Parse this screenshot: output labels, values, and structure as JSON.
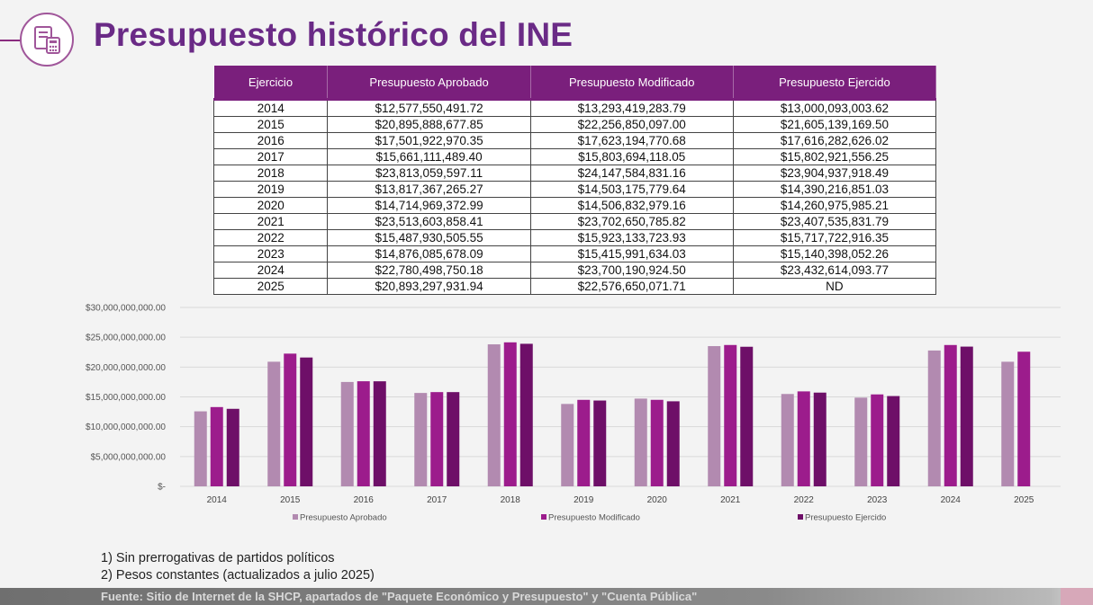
{
  "title": "Presupuesto histórico del INE",
  "colors": {
    "title": "#6a2a86",
    "header_bg": "#7a1f7c",
    "aprobado": "#b28ab0",
    "modificado": "#9c1c8c",
    "ejercido": "#6e0f68"
  },
  "table": {
    "headers": [
      "Ejercicio",
      "Presupuesto Aprobado",
      "Presupuesto Modificado",
      "Presupuesto Ejercido"
    ],
    "rows": [
      [
        "2014",
        "$12,577,550,491.72",
        "$13,293,419,283.79",
        "$13,000,093,003.62"
      ],
      [
        "2015",
        "$20,895,888,677.85",
        "$22,256,850,097.00",
        "$21,605,139,169.50"
      ],
      [
        "2016",
        "$17,501,922,970.35",
        "$17,623,194,770.68",
        "$17,616,282,626.02"
      ],
      [
        "2017",
        "$15,661,111,489.40",
        "$15,803,694,118.05",
        "$15,802,921,556.25"
      ],
      [
        "2018",
        "$23,813,059,597.11",
        "$24,147,584,831.16",
        "$23,904,937,918.49"
      ],
      [
        "2019",
        "$13,817,367,265.27",
        "$14,503,175,779.64",
        "$14,390,216,851.03"
      ],
      [
        "2020",
        "$14,714,969,372.99",
        "$14,506,832,979.16",
        "$14,260,975,985.21"
      ],
      [
        "2021",
        "$23,513,603,858.41",
        "$23,702,650,785.82",
        "$23,407,535,831.79"
      ],
      [
        "2022",
        "$15,487,930,505.55",
        "$15,923,133,723.93",
        "$15,717,722,916.35"
      ],
      [
        "2023",
        "$14,876,085,678.09",
        "$15,415,991,634.03",
        "$15,140,398,052.26"
      ],
      [
        "2024",
        "$22,780,498,750.18",
        "$23,700,190,924.50",
        "$23,432,614,093.77"
      ],
      [
        "2025",
        "$20,893,297,931.94",
        "$22,576,650,071.71",
        "ND"
      ]
    ]
  },
  "chart_data": {
    "type": "bar",
    "title": "",
    "xlabel": "",
    "ylabel": "",
    "ylim": [
      0,
      30000000000
    ],
    "y_ticks": [
      0,
      5000000000,
      10000000000,
      15000000000,
      20000000000,
      25000000000,
      30000000000
    ],
    "y_tick_labels": [
      "$-",
      "$5,000,000,000.00",
      "$10,000,000,000.00",
      "$15,000,000,000.00",
      "$20,000,000,000.00",
      "$25,000,000,000.00",
      "$30,000,000,000.00"
    ],
    "categories": [
      "2014",
      "2015",
      "2016",
      "2017",
      "2018",
      "2019",
      "2020",
      "2021",
      "2022",
      "2023",
      "2024",
      "2025"
    ],
    "grid": true,
    "legend_position": "bottom",
    "series": [
      {
        "name": "Presupuesto Aprobado",
        "color": "#b28ab0",
        "values": [
          12577550491.72,
          20895888677.85,
          17501922970.35,
          15661111489.4,
          23813059597.11,
          13817367265.27,
          14714969372.99,
          23513603858.41,
          15487930505.55,
          14876085678.09,
          22780498750.18,
          20893297931.94
        ]
      },
      {
        "name": "Presupuesto Modificado",
        "color": "#9c1c8c",
        "values": [
          13293419283.79,
          22256850097.0,
          17623194770.68,
          15803694118.05,
          24147584831.16,
          14503175779.64,
          14506832979.16,
          23702650785.82,
          15923133723.93,
          15415991634.03,
          23700190924.5,
          22576650071.71
        ]
      },
      {
        "name": "Presupuesto Ejercido",
        "color": "#6e0f68",
        "values": [
          13000093003.62,
          21605139169.5,
          17616282626.02,
          15802921556.25,
          23904937918.49,
          14390216851.03,
          14260975985.21,
          23407535831.79,
          15717722916.35,
          15140398052.26,
          23432614093.77,
          null
        ]
      }
    ]
  },
  "notes": [
    "1) Sin prerrogativas de partidos políticos",
    "2) Pesos constantes (actualizados a julio 2025)"
  ],
  "footer": "Fuente: Sitio de Internet de la SHCP, apartados de \"Paquete Económico y Presupuesto\" y \"Cuenta Pública\""
}
